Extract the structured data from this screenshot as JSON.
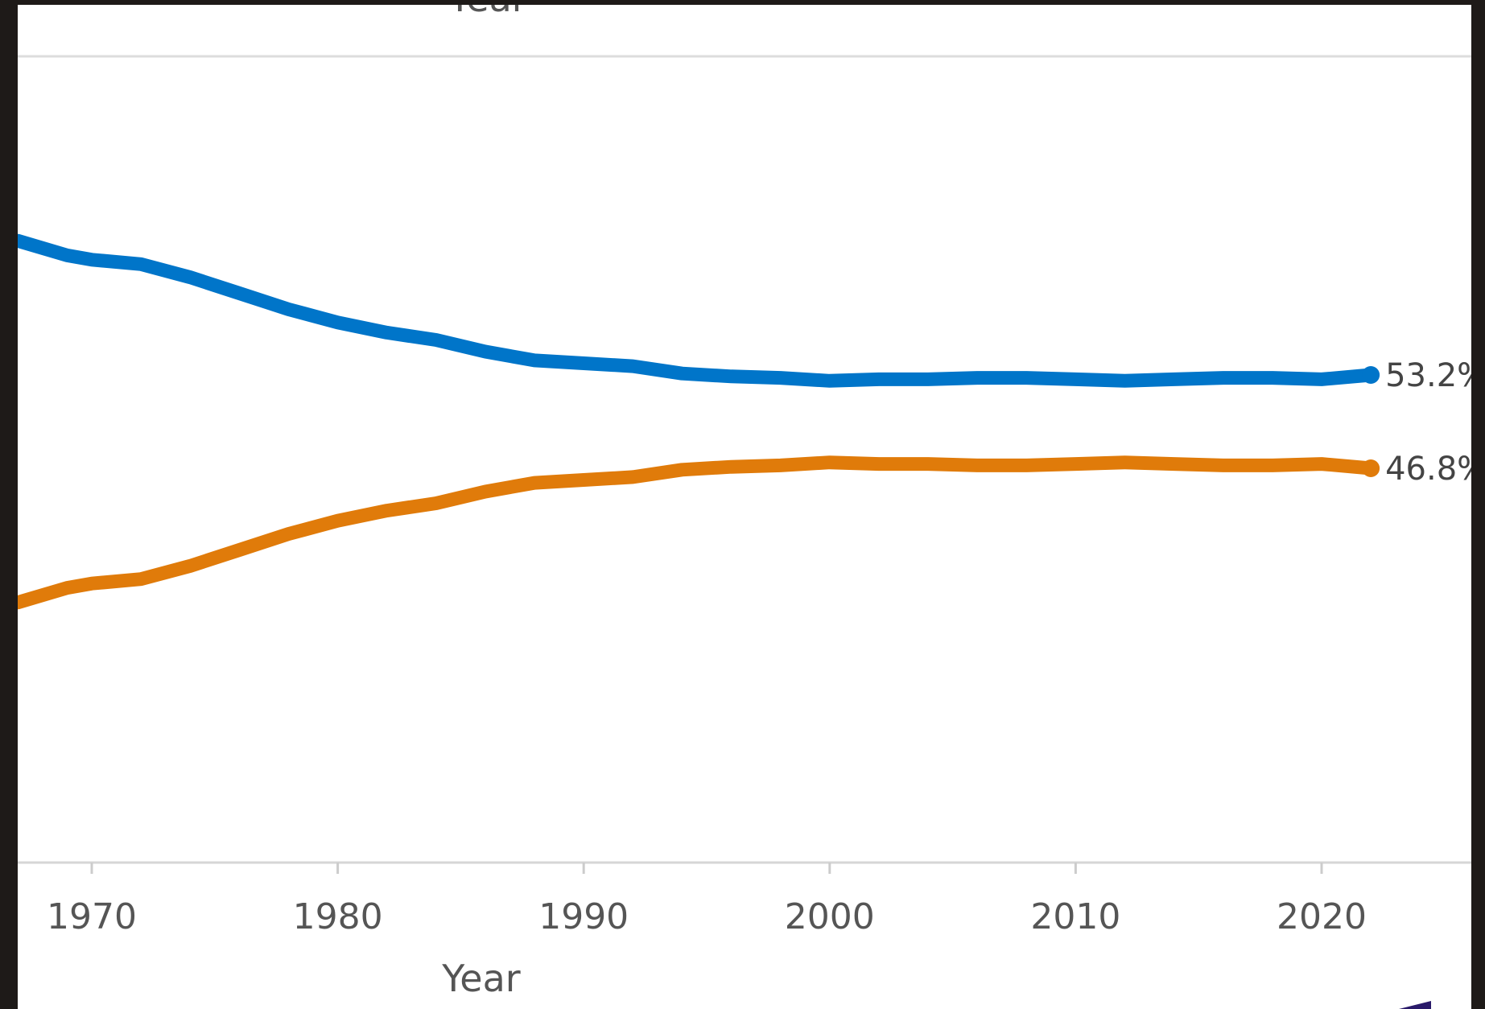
{
  "chart_data": {
    "type": "line",
    "title": "",
    "top_label": "Year",
    "xlabel": "Year",
    "ylabel": "",
    "xlim": [
      1967,
      2026
    ],
    "ylim": [
      30,
      70
    ],
    "x_ticks": [
      1970,
      1980,
      1990,
      2000,
      2010,
      2020
    ],
    "x": [
      1967,
      1969,
      1970,
      1972,
      1974,
      1976,
      1978,
      1980,
      1982,
      1984,
      1986,
      1988,
      1990,
      1992,
      1994,
      1996,
      1998,
      2000,
      2002,
      2004,
      2006,
      2008,
      2010,
      2012,
      2014,
      2016,
      2018,
      2020,
      2022
    ],
    "series": [
      {
        "color": "#0075c9",
        "end_label": "53.2%",
        "values": [
          62.4,
          61.4,
          61.1,
          60.8,
          59.9,
          58.8,
          57.7,
          56.8,
          56.1,
          55.6,
          54.8,
          54.2,
          54.0,
          53.8,
          53.3,
          53.1,
          53.0,
          52.8,
          52.9,
          52.9,
          53.0,
          53.0,
          52.9,
          52.8,
          52.9,
          53.0,
          53.0,
          52.9,
          53.2
        ]
      },
      {
        "color": "#e07b0a",
        "end_label": "46.8%",
        "values": [
          37.6,
          38.6,
          38.9,
          39.2,
          40.1,
          41.2,
          42.3,
          43.2,
          43.9,
          44.4,
          45.2,
          45.8,
          46.0,
          46.2,
          46.7,
          46.9,
          47.0,
          47.2,
          47.1,
          47.1,
          47.0,
          47.0,
          47.1,
          47.2,
          47.1,
          47.0,
          47.0,
          47.1,
          46.8
        ]
      }
    ],
    "grid": false
  }
}
